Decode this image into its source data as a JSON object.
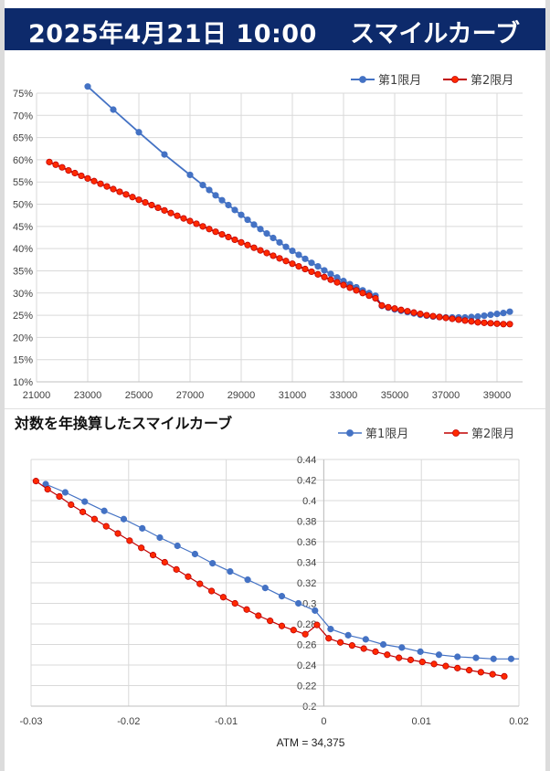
{
  "header": {
    "datetime": "2025年4月21日 10:00",
    "title": "スマイルカーブ"
  },
  "colors": {
    "header_bg": "#0d2a6b",
    "series1": "#4472c4",
    "series2_fill": "#ff2a00",
    "series2_line": "#c00000"
  },
  "chart_data": [
    {
      "type": "line",
      "title": "",
      "xlabel": "",
      "ylabel": "",
      "xlim": [
        21000,
        40000
      ],
      "ylim": [
        0.1,
        0.75
      ],
      "grid": true,
      "legend": "top-right",
      "x_ticks": [
        "21000",
        "23000",
        "25000",
        "27000",
        "29000",
        "31000",
        "33000",
        "35000",
        "37000",
        "39000"
      ],
      "y_ticks": [
        "10%",
        "15%",
        "20%",
        "25%",
        "30%",
        "35%",
        "40%",
        "45%",
        "50%",
        "55%",
        "60%",
        "65%",
        "70%",
        "75%"
      ],
      "series": [
        {
          "name": "第1限月",
          "x": [
            23000,
            24000,
            25000,
            26000,
            27000,
            27500,
            27750,
            28000,
            28250,
            28500,
            28750,
            29000,
            29250,
            29500,
            29750,
            30000,
            30250,
            30500,
            30750,
            31000,
            31250,
            31500,
            31750,
            32000,
            32250,
            32500,
            32750,
            33000,
            33250,
            33500,
            33750,
            34000,
            34250,
            34500,
            34750,
            35000,
            35250,
            35500,
            35750,
            36000,
            36250,
            36500,
            36750,
            37000,
            37250,
            37500,
            37750,
            38000,
            38250,
            38500,
            38750,
            39000,
            39250,
            39500
          ],
          "y": [
            0.765,
            0.713,
            0.662,
            0.612,
            0.566,
            0.543,
            0.532,
            0.52,
            0.509,
            0.498,
            0.487,
            0.476,
            0.465,
            0.454,
            0.444,
            0.434,
            0.424,
            0.414,
            0.404,
            0.395,
            0.386,
            0.377,
            0.368,
            0.36,
            0.351,
            0.343,
            0.335,
            0.327,
            0.32,
            0.313,
            0.306,
            0.3,
            0.294,
            0.271,
            0.267,
            0.263,
            0.26,
            0.257,
            0.254,
            0.251,
            0.249,
            0.247,
            0.246,
            0.245,
            0.245,
            0.245,
            0.245,
            0.246,
            0.247,
            0.249,
            0.251,
            0.253,
            0.255,
            0.258
          ]
        },
        {
          "name": "第2限月",
          "x": [
            21500,
            21750,
            22000,
            22250,
            22500,
            22750,
            23000,
            23250,
            23500,
            23750,
            24000,
            24250,
            24500,
            24750,
            25000,
            25250,
            25500,
            25750,
            26000,
            26250,
            26500,
            26750,
            27000,
            27250,
            27500,
            27750,
            28000,
            28250,
            28500,
            28750,
            29000,
            29250,
            29500,
            29750,
            30000,
            30250,
            30500,
            30750,
            31000,
            31250,
            31500,
            31750,
            32000,
            32250,
            32500,
            32750,
            33000,
            33250,
            33500,
            33750,
            34000,
            34250,
            34500,
            34750,
            35000,
            35250,
            35500,
            35750,
            36000,
            36250,
            36500,
            36750,
            37000,
            37250,
            37500,
            37750,
            38000,
            38250,
            38500,
            38750,
            39000,
            39250,
            39500
          ],
          "y": [
            0.595,
            0.589,
            0.583,
            0.576,
            0.57,
            0.564,
            0.558,
            0.552,
            0.546,
            0.54,
            0.534,
            0.528,
            0.522,
            0.516,
            0.51,
            0.504,
            0.498,
            0.492,
            0.486,
            0.48,
            0.474,
            0.468,
            0.462,
            0.456,
            0.45,
            0.444,
            0.438,
            0.432,
            0.426,
            0.42,
            0.414,
            0.408,
            0.402,
            0.396,
            0.39,
            0.384,
            0.378,
            0.372,
            0.366,
            0.36,
            0.354,
            0.348,
            0.342,
            0.336,
            0.33,
            0.324,
            0.318,
            0.312,
            0.306,
            0.3,
            0.294,
            0.288,
            0.272,
            0.268,
            0.265,
            0.262,
            0.259,
            0.256,
            0.253,
            0.25,
            0.248,
            0.246,
            0.244,
            0.242,
            0.24,
            0.238,
            0.236,
            0.234,
            0.233,
            0.232,
            0.231,
            0.23,
            0.23
          ]
        }
      ]
    },
    {
      "type": "line",
      "title": "対数を年換算したスマイルカーブ",
      "xlabel": "ATM = 34,375",
      "ylabel": "",
      "xlim": [
        -0.03,
        0.02
      ],
      "ylim": [
        0.2,
        0.44
      ],
      "grid": true,
      "legend": "top-right",
      "x_ticks": [
        "-0.03",
        "-0.02",
        "-0.01",
        "0",
        "0.01",
        "0.02"
      ],
      "y_ticks": [
        "0.2",
        "0.22",
        "0.24",
        "0.26",
        "0.28",
        "0.3",
        "0.32",
        "0.34",
        "0.36",
        "0.38",
        "0.4",
        "0.42",
        "0.44"
      ],
      "series": [
        {
          "name": "第1限月",
          "x": [
            -0.0285,
            -0.0265,
            -0.0245,
            -0.0225,
            -0.0205,
            -0.0186,
            -0.0168,
            -0.015,
            -0.0132,
            -0.0114,
            -0.0096,
            -0.0078,
            -0.006,
            -0.0043,
            -0.0026,
            -0.0009,
            0.0007,
            0.0025,
            0.0043,
            0.0061,
            0.008,
            0.0099,
            0.0118,
            0.0137,
            0.0156,
            0.0174,
            0.0192
          ],
          "y": [
            0.416,
            0.408,
            0.399,
            0.39,
            0.382,
            0.373,
            0.364,
            0.356,
            0.348,
            0.339,
            0.331,
            0.323,
            0.315,
            0.307,
            0.3,
            0.293,
            0.275,
            0.269,
            0.265,
            0.26,
            0.257,
            0.253,
            0.25,
            0.248,
            0.247,
            0.246,
            0.246
          ]
        },
        {
          "name": "第2限月",
          "x": [
            -0.0295,
            -0.0283,
            -0.0271,
            -0.0259,
            -0.0247,
            -0.0235,
            -0.0223,
            -0.0211,
            -0.0199,
            -0.0187,
            -0.0175,
            -0.0163,
            -0.0151,
            -0.0139,
            -0.0127,
            -0.0115,
            -0.0103,
            -0.0091,
            -0.0079,
            -0.0067,
            -0.0055,
            -0.0043,
            -0.0031,
            -0.0019,
            -0.0007,
            0.0005,
            0.0017,
            0.0029,
            0.0041,
            0.0053,
            0.0065,
            0.0077,
            0.0089,
            0.0101,
            0.0113,
            0.0125,
            0.0137,
            0.0149,
            0.0161,
            0.0173,
            0.0185
          ],
          "y": [
            0.419,
            0.411,
            0.404,
            0.396,
            0.389,
            0.382,
            0.375,
            0.368,
            0.361,
            0.354,
            0.347,
            0.34,
            0.333,
            0.326,
            0.319,
            0.312,
            0.306,
            0.3,
            0.294,
            0.288,
            0.283,
            0.278,
            0.274,
            0.27,
            0.279,
            0.266,
            0.262,
            0.259,
            0.256,
            0.253,
            0.25,
            0.247,
            0.245,
            0.243,
            0.241,
            0.239,
            0.237,
            0.235,
            0.233,
            0.231,
            0.229
          ]
        }
      ]
    }
  ]
}
